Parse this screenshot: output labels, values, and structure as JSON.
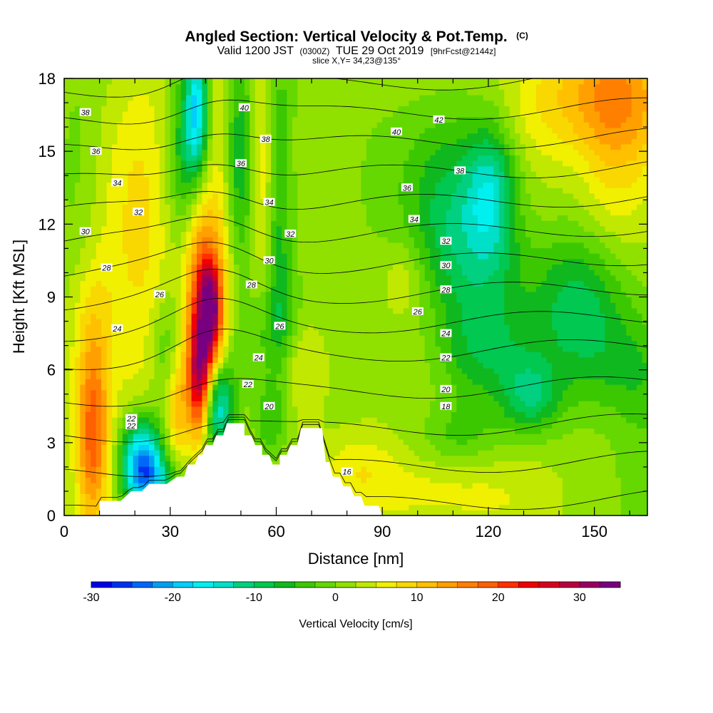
{
  "header": {
    "title": "Angled Section: Vertical Velocity & Pot.Temp.",
    "title_mark": "(C)",
    "valid_prefix": "Valid 1200 JST",
    "valid_zulu": "(0300Z)",
    "valid_date": "TUE 29 Oct 2019",
    "forecast_tag": "[9hrFcst@2144z]",
    "slice": "slice X,Y= 34,23@135°"
  },
  "chart_data": {
    "type": "heatmap",
    "xlabel": "Distance [nm]",
    "ylabel": "Height [Kft MSL]",
    "xlim": [
      0,
      165
    ],
    "ylim": [
      0,
      18
    ],
    "x_ticks": [
      0,
      30,
      60,
      90,
      120,
      150
    ],
    "y_ticks": [
      0,
      3,
      6,
      9,
      12,
      15,
      18
    ],
    "terrain": {
      "distance_nm": [
        0,
        10,
        10,
        16,
        19,
        22,
        24,
        29,
        32,
        34,
        35,
        37,
        38,
        39,
        40,
        42,
        43,
        45,
        46,
        51,
        51,
        53,
        54,
        56,
        56,
        58,
        59,
        61,
        61,
        63,
        64,
        66,
        67,
        73,
        74,
        75,
        76,
        78,
        79,
        81,
        82,
        84,
        85,
        89,
        90,
        165
      ],
      "height_kft": [
        0,
        0,
        0.6,
        0.6,
        1.0,
        1.0,
        1.3,
        1.3,
        1.6,
        1.6,
        2.1,
        2.1,
        2.5,
        2.5,
        2.9,
        2.9,
        3.3,
        3.3,
        3.8,
        3.8,
        3.3,
        3.3,
        2.9,
        2.9,
        2.5,
        2.5,
        2.1,
        2.1,
        2.5,
        2.5,
        2.9,
        2.9,
        3.6,
        3.6,
        2.2,
        2.2,
        1.6,
        1.6,
        1.2,
        1.2,
        0.8,
        0.8,
        0.4,
        0.4,
        0,
        0
      ]
    },
    "vertical_velocity_cms": {
      "background": 2,
      "features": [
        {
          "x": 8,
          "y": 3.2,
          "sx": 3.2,
          "sy": 2.6,
          "value": 16
        },
        {
          "x": 8,
          "y": 7.8,
          "sx": 5,
          "sy": 2.5,
          "value": 7
        },
        {
          "x": 22,
          "y": 2.4,
          "sx": 4.2,
          "sy": 1.2,
          "value": -24
        },
        {
          "x": 25,
          "y": 1.3,
          "sx": 6,
          "sy": 0.8,
          "value": -12
        },
        {
          "x": 22,
          "y": 10.5,
          "sx": 7,
          "sy": 6,
          "value": 6
        },
        {
          "x": 32,
          "y": 4.5,
          "sx": 2.3,
          "sy": 1.8,
          "value": 9
        },
        {
          "x": 29,
          "y": 6.8,
          "sx": 3.5,
          "sy": 1.8,
          "value": -7
        },
        {
          "x": 38,
          "y": 5.2,
          "sx": 2.2,
          "sy": 1.6,
          "value": 18
        },
        {
          "x": 40,
          "y": 7.5,
          "sx": 3.2,
          "sy": 2.4,
          "value": 25
        },
        {
          "x": 41.5,
          "y": 8.7,
          "sx": 1.8,
          "sy": 1.1,
          "value": 14
        },
        {
          "x": 38,
          "y": 11.5,
          "sx": 4,
          "sy": 2.5,
          "value": 9
        },
        {
          "x": 43,
          "y": 4.6,
          "sx": 3.4,
          "sy": 1.4,
          "value": -22
        },
        {
          "x": 34,
          "y": 14.5,
          "sx": 3.5,
          "sy": 3,
          "value": -10
        },
        {
          "x": 37.5,
          "y": 16.8,
          "sx": 2.2,
          "sy": 2,
          "value": -17
        },
        {
          "x": 45,
          "y": 13.5,
          "sx": 2.6,
          "sy": 4,
          "value": 6
        },
        {
          "x": 49,
          "y": 15,
          "sx": 3.2,
          "sy": 3.5,
          "value": -9
        },
        {
          "x": 56,
          "y": 14.2,
          "sx": 2.2,
          "sy": 3,
          "value": 6
        },
        {
          "x": 61,
          "y": 12.5,
          "sx": 2.6,
          "sy": 5,
          "value": -7
        },
        {
          "x": 61,
          "y": 7.8,
          "sx": 4,
          "sy": 1.5,
          "value": -5
        },
        {
          "x": 52,
          "y": 7,
          "sx": 4,
          "sy": 1.4,
          "value": -4
        },
        {
          "x": 67,
          "y": 6.3,
          "sx": 5.5,
          "sy": 1.4,
          "value": 5
        },
        {
          "x": 58,
          "y": 3.9,
          "sx": 3,
          "sy": 1.2,
          "value": -6
        },
        {
          "x": 96,
          "y": 1,
          "sx": 22,
          "sy": 1.1,
          "value": 5
        },
        {
          "x": 85,
          "y": 2.4,
          "sx": 6,
          "sy": 0.8,
          "value": 3
        },
        {
          "x": 110,
          "y": 12.5,
          "sx": 9,
          "sy": 3,
          "value": -9
        },
        {
          "x": 121,
          "y": 13.5,
          "sx": 5,
          "sy": 2,
          "value": -12
        },
        {
          "x": 119,
          "y": 10,
          "sx": 9,
          "sy": 2.5,
          "value": -6
        },
        {
          "x": 147,
          "y": 8.6,
          "sx": 10,
          "sy": 2.3,
          "value": -12
        },
        {
          "x": 118,
          "y": 6.6,
          "sx": 10,
          "sy": 1.4,
          "value": -6
        },
        {
          "x": 132,
          "y": 4.9,
          "sx": 6,
          "sy": 1.1,
          "value": -10
        },
        {
          "x": 160,
          "y": 6,
          "sx": 10,
          "sy": 1.6,
          "value": -5
        },
        {
          "x": 150,
          "y": 17.3,
          "sx": 17,
          "sy": 1.8,
          "value": 9
        },
        {
          "x": 154,
          "y": 12.5,
          "sx": 7,
          "sy": 3,
          "value": 3
        },
        {
          "x": 158,
          "y": 16,
          "sx": 8,
          "sy": 3,
          "value": 6
        },
        {
          "x": 96,
          "y": 9.8,
          "sx": 4,
          "sy": 1,
          "value": 4
        },
        {
          "x": 112,
          "y": 3.3,
          "sx": 8,
          "sy": 1,
          "value": -5
        },
        {
          "x": 80,
          "y": 14,
          "sx": 15,
          "sy": 4,
          "value": -2
        },
        {
          "x": 4,
          "y": 13,
          "sx": 5,
          "sy": 5,
          "value": -3
        },
        {
          "x": 165,
          "y": 3,
          "sx": 6,
          "sy": 3,
          "value": -3
        }
      ]
    },
    "potential_temperature_C": {
      "levels": [
        16,
        18,
        20,
        22,
        24,
        26,
        28,
        30,
        32,
        34,
        36,
        38,
        40,
        42
      ],
      "contour_labels": [
        {
          "text": "38",
          "x": 6,
          "y": 16.6
        },
        {
          "text": "36",
          "x": 9,
          "y": 15
        },
        {
          "text": "34",
          "x": 15,
          "y": 13.7
        },
        {
          "text": "32",
          "x": 21,
          "y": 12.5
        },
        {
          "text": "30",
          "x": 6,
          "y": 11.7
        },
        {
          "text": "28",
          "x": 12,
          "y": 10.2
        },
        {
          "text": "26",
          "x": 27,
          "y": 9.1
        },
        {
          "text": "24",
          "x": 15,
          "y": 7.7
        },
        {
          "text": "22",
          "x": 19,
          "y": 4
        },
        {
          "text": "22",
          "x": 19,
          "y": 3.7
        },
        {
          "text": "40",
          "x": 51,
          "y": 16.8
        },
        {
          "text": "38",
          "x": 57,
          "y": 15.5
        },
        {
          "text": "36",
          "x": 50,
          "y": 14.5
        },
        {
          "text": "34",
          "x": 58,
          "y": 12.9
        },
        {
          "text": "32",
          "x": 64,
          "y": 11.6
        },
        {
          "text": "30",
          "x": 58,
          "y": 10.5
        },
        {
          "text": "28",
          "x": 53,
          "y": 9.5
        },
        {
          "text": "26",
          "x": 61,
          "y": 7.8
        },
        {
          "text": "24",
          "x": 55,
          "y": 6.5
        },
        {
          "text": "22",
          "x": 52,
          "y": 5.4
        },
        {
          "text": "20",
          "x": 58,
          "y": 4.5
        },
        {
          "text": "16",
          "x": 80,
          "y": 1.8
        },
        {
          "text": "42",
          "x": 106,
          "y": 16.3
        },
        {
          "text": "40",
          "x": 94,
          "y": 15.8
        },
        {
          "text": "38",
          "x": 112,
          "y": 14.2
        },
        {
          "text": "36",
          "x": 97,
          "y": 13.5
        },
        {
          "text": "34",
          "x": 99,
          "y": 12.2
        },
        {
          "text": "32",
          "x": 108,
          "y": 11.3
        },
        {
          "text": "30",
          "x": 108,
          "y": 10.3
        },
        {
          "text": "28",
          "x": 108,
          "y": 9.3
        },
        {
          "text": "26",
          "x": 100,
          "y": 8.4
        },
        {
          "text": "24",
          "x": 108,
          "y": 7.5
        },
        {
          "text": "22",
          "x": 108,
          "y": 6.5
        },
        {
          "text": "20",
          "x": 108,
          "y": 5.2
        },
        {
          "text": "18",
          "x": 108,
          "y": 4.5
        }
      ]
    },
    "colorbar": {
      "label": "Vertical Velocity [cm/s]",
      "min": -30,
      "max": 35,
      "step": 2.5,
      "tick_values": [
        -30,
        -20,
        -10,
        0,
        10,
        20,
        30
      ],
      "tick_labels": [
        "-30",
        "-20",
        "-10",
        "0",
        "10",
        "20",
        "30"
      ],
      "colors": [
        "#0000e8",
        "#0030f0",
        "#0068f8",
        "#00a0f0",
        "#00d0f8",
        "#00f0f0",
        "#00e0c8",
        "#00d080",
        "#00c850",
        "#10b820",
        "#3cc800",
        "#64d800",
        "#90e000",
        "#c0e800",
        "#f0f000",
        "#f8d800",
        "#ffc000",
        "#ffa000",
        "#ff8000",
        "#ff6000",
        "#ff3000",
        "#f00000",
        "#d80020",
        "#b80040",
        "#980060",
        "#780080"
      ]
    }
  }
}
